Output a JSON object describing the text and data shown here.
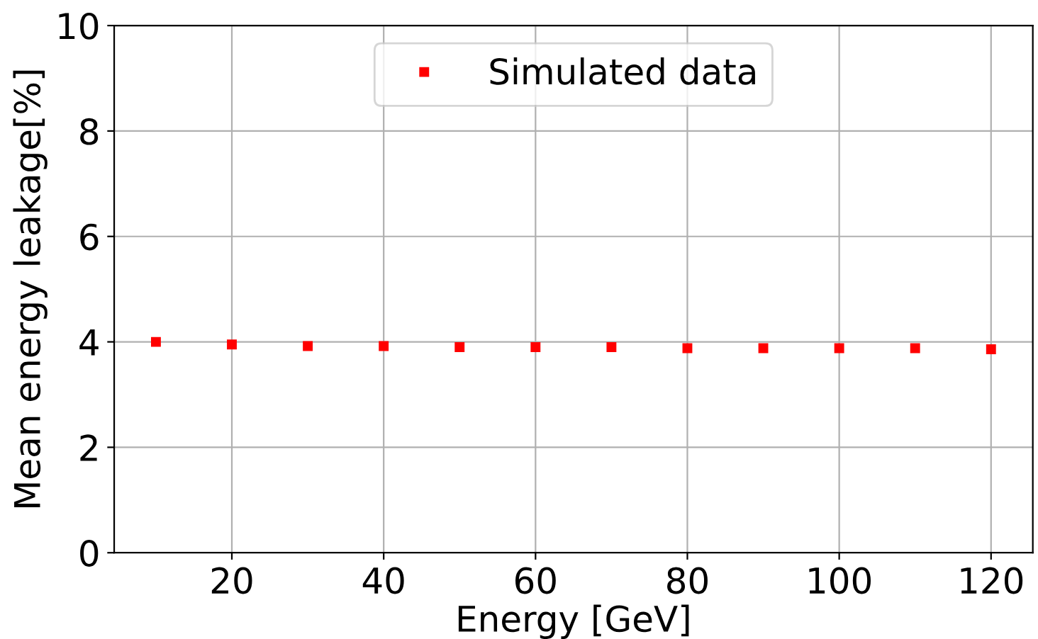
{
  "chart_data": {
    "type": "scatter",
    "xlabel": "Energy [GeV]",
    "ylabel": "Mean energy leakage[%]",
    "x": [
      10,
      20,
      30,
      40,
      50,
      60,
      70,
      80,
      90,
      100,
      110,
      120
    ],
    "series": [
      {
        "name": "Simulated data",
        "color": "#ff0000",
        "values": [
          4.0,
          3.95,
          3.92,
          3.92,
          3.9,
          3.9,
          3.9,
          3.88,
          3.88,
          3.88,
          3.88,
          3.86
        ]
      }
    ],
    "xlim": [
      4.5,
      125.5
    ],
    "xticks": [
      20,
      40,
      60,
      80,
      100,
      120
    ],
    "ylim": [
      0,
      10
    ],
    "yticks": [
      0,
      2,
      4,
      6,
      8,
      10
    ],
    "grid": true,
    "legend": "top",
    "marker": "square"
  }
}
